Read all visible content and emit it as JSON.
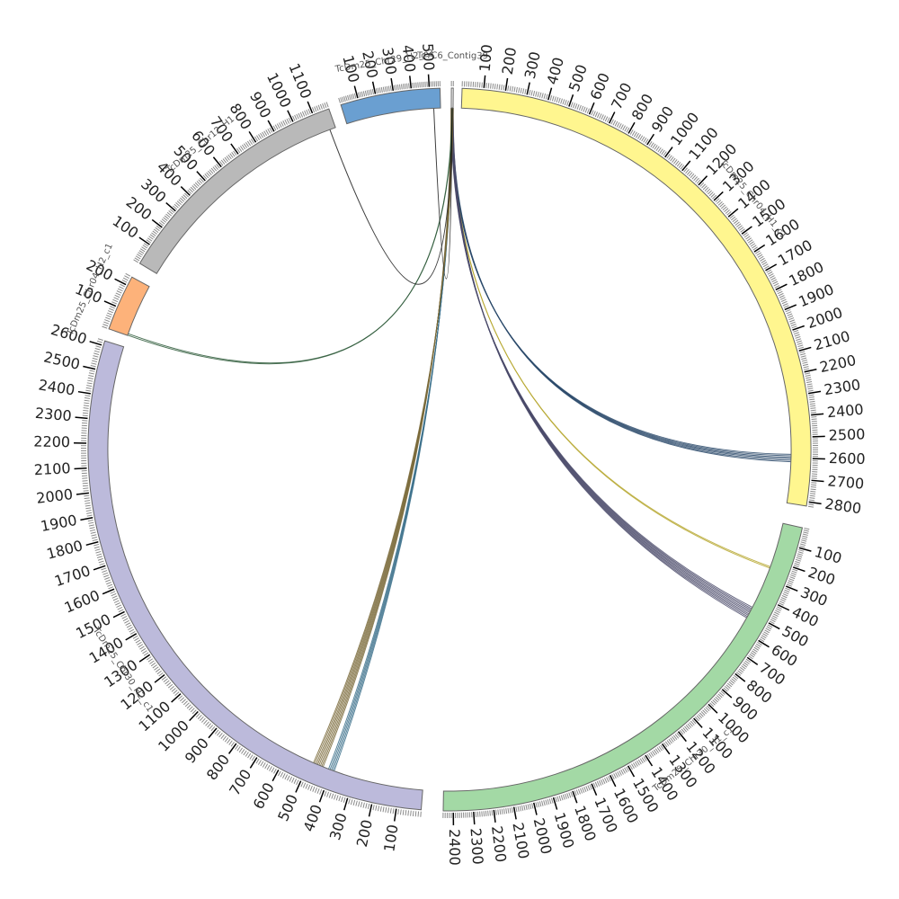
{
  "chart_data": {
    "type": "chord",
    "title": "",
    "tick_spacing": 100,
    "segments": [
      {
        "id": "contig39",
        "name": "TcYC6_Contig39",
        "length": 10,
        "start_deg": 0.3,
        "end_deg": 0.6,
        "color": "#ffffff",
        "tick_labels": []
      },
      {
        "id": "chr04h1",
        "name": "TcDm25_Chr04_H1_c1",
        "length": 2820,
        "start_deg": 2.0,
        "end_deg": 99.0,
        "color": "#fff68f",
        "tick_labels": [
          "100",
          "200",
          "300",
          "400",
          "500",
          "600",
          "700",
          "800",
          "900",
          "1000",
          "1100",
          "1200",
          "1300",
          "1400",
          "1500",
          "1600",
          "1700",
          "1800",
          "1900",
          "2000",
          "2100",
          "2200",
          "2300",
          "2400",
          "2500",
          "2600",
          "2700",
          "2800"
        ]
      },
      {
        "id": "chr30h1",
        "name": "TcDm25_Chr30_H1_c1",
        "length": 2450,
        "start_deg": 102.5,
        "end_deg": 181.0,
        "color": "#a3d9a5",
        "tick_labels": [
          "100",
          "200",
          "300",
          "400",
          "500",
          "600",
          "700",
          "800",
          "900",
          "1000",
          "1100",
          "1200",
          "1300",
          "1400",
          "1500",
          "1600",
          "1700",
          "1800",
          "1900",
          "2000",
          "2100",
          "2200",
          "2300",
          "2400"
        ]
      },
      {
        "id": "chr30h2",
        "name": "TcDm25_Chr30_H2_c1",
        "length": 2620,
        "start_deg": 184.5,
        "end_deg": 287.5,
        "color": "#bcbadb",
        "tick_labels": [
          "100",
          "200",
          "300",
          "400",
          "500",
          "600",
          "700",
          "800",
          "900",
          "1000",
          "1100",
          "1200",
          "1300",
          "1400",
          "1500",
          "1600",
          "1700",
          "1800",
          "1900",
          "2000",
          "2100",
          "2200",
          "2300",
          "2400",
          "2500",
          "2600"
        ]
      },
      {
        "id": "chr04h2",
        "name": "TcDm25_Chr04_H2_c1",
        "length": 240,
        "start_deg": 289.5,
        "end_deg": 298.5,
        "color": "#fdb27a",
        "tick_labels": [
          "100",
          "200"
        ]
      },
      {
        "id": "chr12h1",
        "name": "TcDm25_Chr12_H1",
        "length": 1180,
        "start_deg": 301.0,
        "end_deg": 340.5,
        "color": "#b9b9b9",
        "tick_labels": [
          "100",
          "200",
          "300",
          "400",
          "500",
          "600",
          "700",
          "800",
          "900",
          "1000",
          "1100"
        ]
      },
      {
        "id": "chr29h2",
        "name": "TcDm25_Chr29_H2_c2",
        "length": 560,
        "start_deg": 342.5,
        "end_deg": 358.5,
        "color": "#6a9fd1",
        "tick_labels": [
          "100",
          "200",
          "300",
          "400",
          "500"
        ]
      }
    ],
    "links": [
      {
        "from": "contig39",
        "from_pos": 5,
        "to": "chr04h1",
        "to_pos": 2600,
        "color": "#2b4a6b",
        "width": 6
      },
      {
        "from": "contig39",
        "from_pos": 5,
        "to": "chr30h1",
        "to_pos": 240,
        "color": "#b5a62c",
        "width": 2
      },
      {
        "from": "contig39",
        "from_pos": 5,
        "to": "chr30h1",
        "to_pos": 500,
        "color": "#4a4a6a",
        "width": 9
      },
      {
        "from": "contig39",
        "from_pos": 5,
        "to": "chr30h2",
        "to_pos": 400,
        "color": "#3a6e8a",
        "width": 5
      },
      {
        "from": "contig39",
        "from_pos": 5,
        "to": "chr30h2",
        "to_pos": 460,
        "color": "#7a6a3a",
        "width": 8
      },
      {
        "from": "contig39",
        "from_pos": 5,
        "to": "chr04h2",
        "to_pos": 5,
        "color": "#2e5a3a",
        "width": 2
      },
      {
        "from": "contig39",
        "from_pos": 5,
        "to": "chr12h1",
        "to_pos": 1150,
        "color": "#1a1a1a",
        "width": 1
      },
      {
        "from": "contig39",
        "from_pos": 5,
        "to": "chr29h2",
        "to_pos": 520,
        "color": "#1a1a1a",
        "width": 1
      }
    ]
  }
}
